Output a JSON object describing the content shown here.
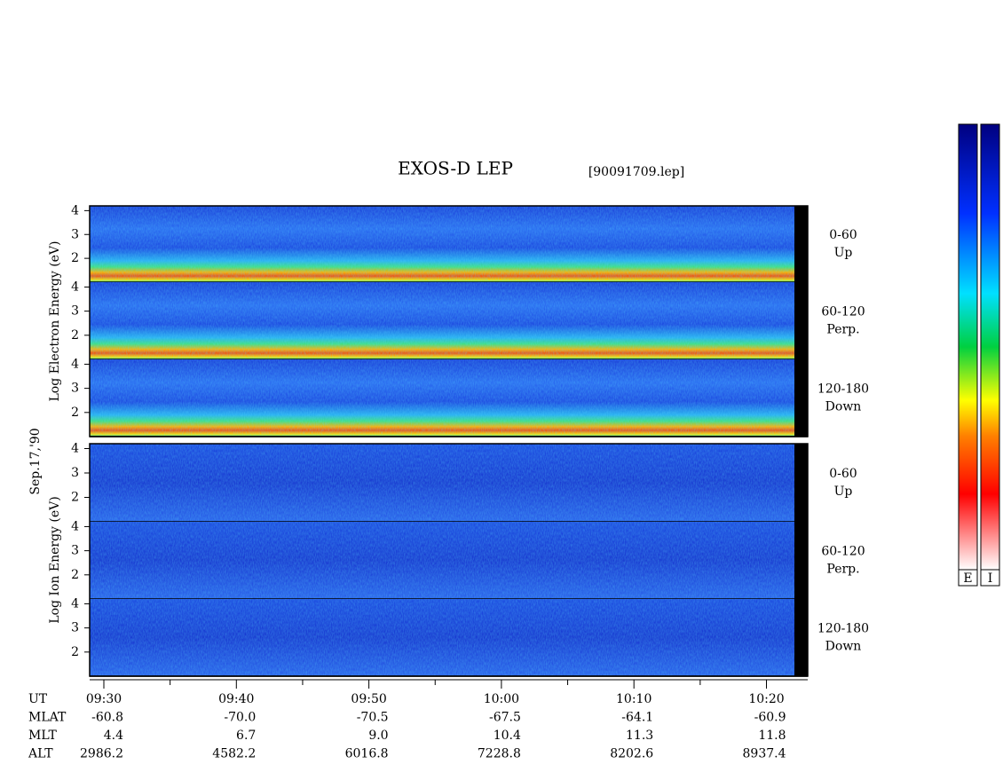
{
  "title": "EXOS-D LEP",
  "file": "[90091709.lep]",
  "date": "Sep.17,'90",
  "ylim": [
    1,
    4.2
  ],
  "yticks": [
    2,
    3,
    4
  ],
  "groups": [
    {
      "ylabel": "Log Electron Energy (eV)",
      "panels": [
        {
          "angle": "0-60",
          "dir": "Up"
        },
        {
          "angle": "60-120",
          "dir": "Perp."
        },
        {
          "angle": "120-180",
          "dir": "Down"
        }
      ]
    },
    {
      "ylabel": "Log Ion Energy (eV)",
      "panels": [
        {
          "angle": "0-60",
          "dir": "Up"
        },
        {
          "angle": "60-120",
          "dir": "Perp."
        },
        {
          "angle": "120-180",
          "dir": "Down"
        }
      ]
    }
  ],
  "ephemeris": {
    "rows": [
      {
        "name": "UT",
        "values": [
          "09:30",
          "09:40",
          "09:50",
          "10:00",
          "10:10",
          "10:20"
        ]
      },
      {
        "name": "MLAT",
        "values": [
          "-60.8",
          "-70.0",
          "-70.5",
          "-67.5",
          "-64.1",
          "-60.9"
        ]
      },
      {
        "name": "MLT",
        "values": [
          "4.4",
          "6.7",
          "9.0",
          "10.4",
          "11.3",
          "11.8"
        ]
      },
      {
        "name": "ALT",
        "values": [
          "2986.2",
          "4582.2",
          "6016.8",
          "7228.8",
          "8202.6",
          "8937.4"
        ]
      }
    ]
  },
  "colorbars": [
    "E",
    "I"
  ]
}
